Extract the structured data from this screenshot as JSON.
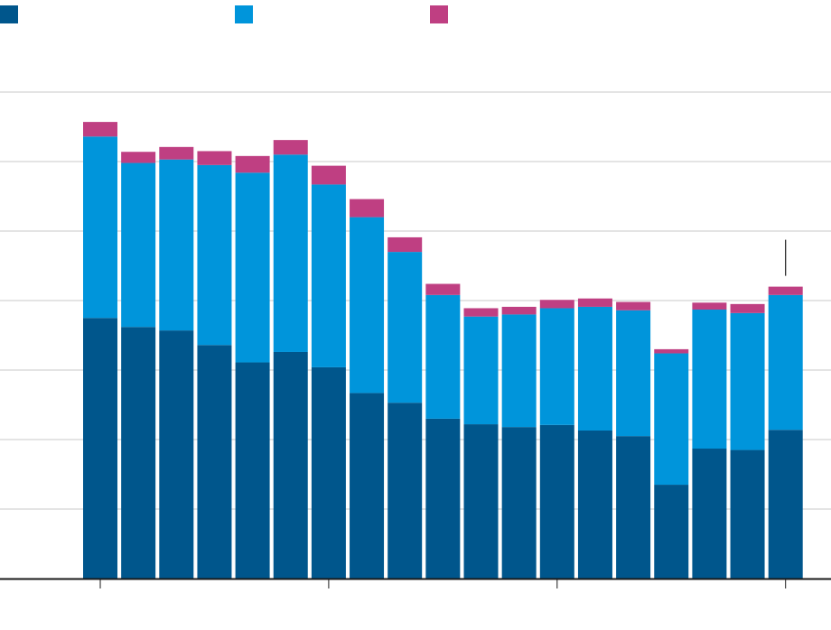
{
  "chart_data": {
    "type": "bar",
    "stacked": true,
    "title": "",
    "xlabel": "",
    "ylabel": "",
    "ylim": [
      0,
      7
    ],
    "grid": true,
    "legend_position": "top-left",
    "n_bars": 19,
    "series": [
      {
        "color": "#00568c",
        "values": [
          3.75,
          3.62,
          3.57,
          3.36,
          3.11,
          3.26,
          3.04,
          2.67,
          2.53,
          2.3,
          2.22,
          2.18,
          2.21,
          2.13,
          2.05,
          1.35,
          1.87,
          1.85,
          2.14
        ]
      },
      {
        "color": "#0095db",
        "values": [
          2.61,
          2.36,
          2.46,
          2.59,
          2.73,
          2.84,
          2.63,
          2.53,
          2.17,
          1.78,
          1.55,
          1.62,
          1.68,
          1.78,
          1.81,
          1.89,
          2.0,
          1.97,
          1.94
        ]
      },
      {
        "color": "#bf3f82",
        "values": [
          0.21,
          0.16,
          0.18,
          0.2,
          0.24,
          0.21,
          0.27,
          0.26,
          0.21,
          0.16,
          0.12,
          0.11,
          0.12,
          0.12,
          0.12,
          0.06,
          0.1,
          0.13,
          0.12
        ]
      }
    ],
    "annotation_bar_index": 18
  }
}
